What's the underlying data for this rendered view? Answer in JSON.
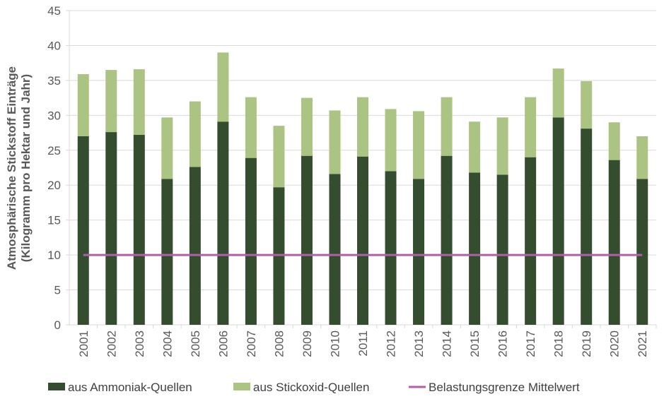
{
  "chart_data": {
    "type": "bar",
    "stacked": true,
    "title": "",
    "xlabel": "",
    "ylabel_lines": [
      "Atmosphärische Stickstoff Einträge",
      "(Kilogramm  pro Hektar und Jahr)"
    ],
    "ylim": [
      0,
      45
    ],
    "yticks": [
      0,
      5,
      10,
      15,
      20,
      25,
      30,
      35,
      40,
      45
    ],
    "grid": true,
    "legend_placement": "bottom",
    "categories": [
      "2001",
      "2002",
      "2003",
      "2004",
      "2005",
      "2006",
      "2007",
      "2008",
      "2009",
      "2010",
      "2011",
      "2012",
      "2013",
      "2014",
      "2015",
      "2016",
      "2017",
      "2018",
      "2019",
      "2020",
      "2021"
    ],
    "series": [
      {
        "name": "aus Ammoniak-Quellen",
        "color": "#344d2e",
        "values": [
          27.0,
          27.6,
          27.2,
          20.9,
          22.6,
          29.1,
          23.9,
          19.7,
          24.2,
          21.6,
          24.1,
          22.0,
          20.9,
          24.2,
          21.8,
          21.5,
          24.0,
          29.7,
          28.1,
          23.6,
          20.9
        ]
      },
      {
        "name": "aus Stickoxid-Quellen",
        "color": "#abc483",
        "values": [
          8.9,
          8.9,
          9.4,
          8.8,
          9.4,
          9.9,
          8.7,
          8.8,
          8.3,
          9.1,
          8.5,
          8.9,
          9.7,
          8.4,
          7.3,
          8.2,
          8.6,
          7.0,
          6.8,
          5.4,
          6.1
        ]
      }
    ],
    "line": {
      "name": "Belastungsgrenze Mittelwert",
      "color": "#b05fa8",
      "value": 10
    }
  }
}
